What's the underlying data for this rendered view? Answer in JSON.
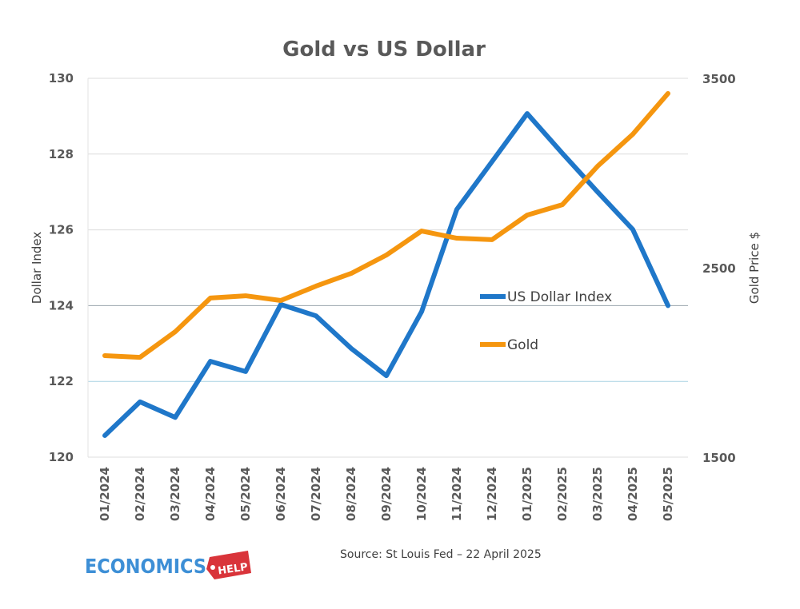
{
  "chart_data": {
    "type": "line",
    "title": "Gold vs US Dollar",
    "categories": [
      "01/2024",
      "02/2024",
      "03/2024",
      "04/2024",
      "05/2024",
      "06/2024",
      "07/2024",
      "08/2024",
      "09/2024",
      "10/2024",
      "11/2024",
      "12/2024",
      "01/2025",
      "02/2025",
      "03/2025",
      "04/2025",
      "05/2025"
    ],
    "y_left": {
      "label": "Dollar Index",
      "range": [
        120,
        130
      ],
      "ticks": [
        120,
        122,
        124,
        126,
        128,
        130
      ]
    },
    "y_right": {
      "label": "Gold Price $",
      "range": [
        1500,
        3500
      ],
      "ticks": [
        1500,
        2500,
        3500
      ]
    },
    "series": [
      {
        "name": "US Dollar Index",
        "axis": "left",
        "color": "#1f77c9",
        "values": [
          120.57,
          121.46,
          121.05,
          122.53,
          122.26,
          124.03,
          123.73,
          122.87,
          122.15,
          123.84,
          126.54,
          127.8,
          129.07,
          128.02,
          127.0,
          126.01,
          124.0
        ]
      },
      {
        "name": "Gold",
        "axis": "right",
        "color": "#f5960f",
        "values": [
          2036,
          2027,
          2162,
          2340,
          2352,
          2327,
          2403,
          2470,
          2567,
          2694,
          2656,
          2648,
          2778,
          2833,
          3036,
          3205,
          3420
        ]
      }
    ],
    "grid": true,
    "legend_position": "center-right",
    "source": "Source: St Louis Fed – 22 April 2025"
  },
  "logo": {
    "text1": "ECONOMICS",
    "text2": "HELP"
  }
}
